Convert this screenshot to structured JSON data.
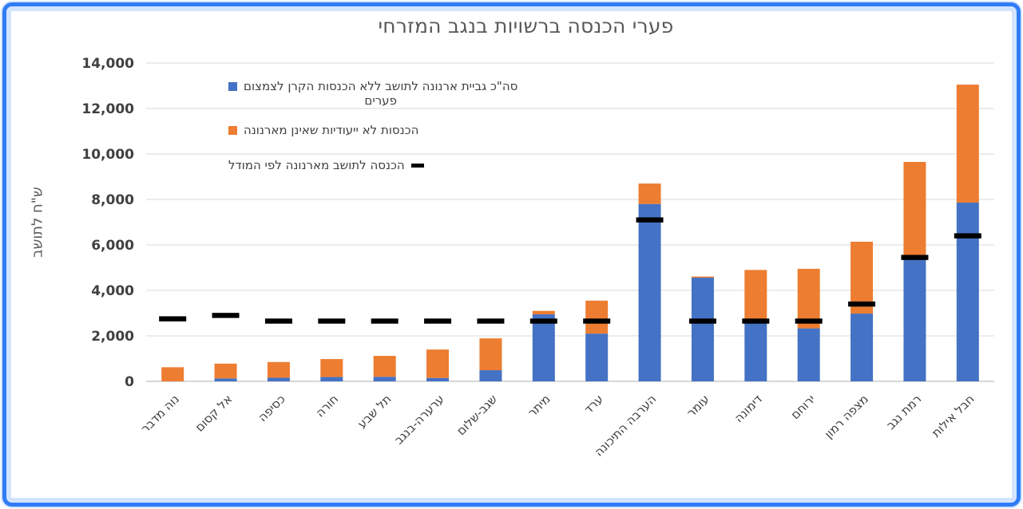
{
  "title": "פערי הכנסה ברשויות בנגב המזרחי",
  "y_axis_title": "ש\"ח לתושב",
  "legend": {
    "items": [
      {
        "marker": "blue-square-icon",
        "color": "#4472C4",
        "label_line1": "סה\"כ גביית ארנונה לתושב ללא הכנסות הקרן לצמצום",
        "label_line2": "פערים"
      },
      {
        "marker": "orange-square-icon",
        "color": "#ED7D31",
        "label": "הכנסות לא ייעודיות שאינן מארנונה"
      },
      {
        "marker": "black-dash-icon",
        "color": "#000000",
        "label": "הכנסה לתושב מארנונה לפי המודל"
      }
    ]
  },
  "chart_data": {
    "type": "bar",
    "stacked": true,
    "title": "פערי הכנסה ברשויות בנגב המזרחי",
    "xlabel": "",
    "ylabel": "ש\"ח לתושב",
    "ylim": [
      0,
      14000
    ],
    "ytick_step": 2000,
    "grid": true,
    "legend_position": "upper-left-inside",
    "categories": [
      "נוה מדבר",
      "אל קסום",
      "כסיפה",
      "חורה",
      "תל שבע",
      "ערערה-בנגב",
      "שגב-שלום",
      "מיתר",
      "ערד",
      "הערבה התיכונה",
      "עומר",
      "דימונה",
      "ירוחם",
      "מצפה רמון",
      "רמת נגב",
      "חבל אילות"
    ],
    "series": [
      {
        "name": "סה\"כ גביית ארנונה לתושב ללא הכנסות הקרן לצמצום פערים",
        "render": "stacked-bar",
        "color": "#4472C4",
        "values": [
          0,
          130,
          160,
          190,
          200,
          150,
          490,
          2950,
          2100,
          7800,
          4560,
          2620,
          2330,
          2980,
          5400,
          7860
        ]
      },
      {
        "name": "הכנסות לא ייעודיות שאינן מארנונה",
        "render": "stacked-bar",
        "color": "#ED7D31",
        "values": [
          620,
          650,
          690,
          790,
          920,
          1250,
          1400,
          150,
          1450,
          900,
          50,
          2280,
          2620,
          3160,
          4250,
          5190
        ]
      },
      {
        "name": "הכנסה לתושב מארנונה לפי המודל",
        "render": "dash-marker",
        "color": "#000000",
        "values": [
          2750,
          2900,
          2650,
          2650,
          2650,
          2650,
          2650,
          2650,
          2650,
          7100,
          2650,
          2650,
          2650,
          3400,
          5450,
          6400
        ]
      }
    ]
  },
  "colors": {
    "frame_blue": "#2f7cf6",
    "frame_light_blue": "#d2e4fd",
    "bar_blue": "#4472C4",
    "bar_orange": "#ED7D31",
    "dash_black": "#000000",
    "title_gray": "#595959",
    "tick_gray": "#404040",
    "gridline_gray": "#D9D9D9",
    "axis_gray": "#BFBFBF"
  }
}
